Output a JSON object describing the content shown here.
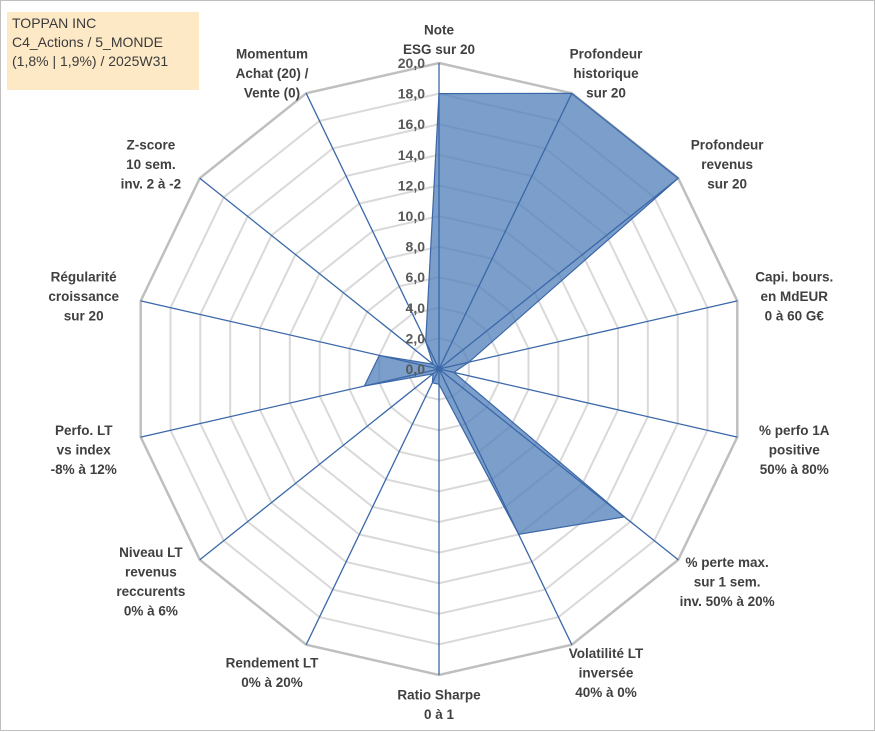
{
  "info": {
    "company": "TOPPAN INC",
    "line2": "C4_Actions / 5_MONDE",
    "line3": "(1,8% | 1,9%) / 2025W31"
  },
  "colors": {
    "fill": "#4f7fb8",
    "fill_opacity": 0.75,
    "stroke": "#3a67a8",
    "spokes": "#3a67a8",
    "grid_outer": "#bfbfbf",
    "grid_inner": "#d9d9d9",
    "info_bg": "#fde9c6"
  },
  "chart_data": {
    "type": "radar",
    "r_min": 0,
    "r_max": 20,
    "tick_step": 2,
    "tick_labels": [
      "0,0",
      "2,0",
      "4,0",
      "6,0",
      "8,0",
      "10,0",
      "12,0",
      "14,0",
      "16,0",
      "18,0",
      "20,0"
    ],
    "axes": [
      {
        "lines": [
          "Note",
          "ESG sur 20"
        ],
        "value": 18
      },
      {
        "lines": [
          "Profondeur",
          "historique",
          "sur 20"
        ],
        "value": 20
      },
      {
        "lines": [
          "Profondeur",
          "revenus",
          "sur 20"
        ],
        "value": 20
      },
      {
        "lines": [
          "Capi. bours.",
          "en MdEUR",
          "0 à 60 G€"
        ],
        "value": 2
      },
      {
        "lines": [
          "% perfo 1A",
          "positive",
          "50% à 80%"
        ],
        "value": 1
      },
      {
        "lines": [
          "% perte max.",
          "sur 1 sem.",
          "inv. 50% à 20%"
        ],
        "value": 15.5
      },
      {
        "lines": [
          "Volatilité LT",
          "inversée",
          "40% à 0%"
        ],
        "value": 12
      },
      {
        "lines": [
          "Ratio Sharpe",
          "0 à 1"
        ],
        "value": 1
      },
      {
        "lines": [
          "Rendement LT",
          "0% à 20%"
        ],
        "value": 1
      },
      {
        "lines": [
          "Niveau LT",
          "revenus",
          "reccurents",
          "0% à 6%"
        ],
        "value": 0.5
      },
      {
        "lines": [
          "Perfo. LT",
          "vs index",
          "-8% à 12%"
        ],
        "value": 5
      },
      {
        "lines": [
          "Régularité",
          "croissance",
          "sur 20"
        ],
        "value": 4
      },
      {
        "lines": [
          "Z-score",
          "10 sem.",
          "inv. 2 à -2"
        ],
        "value": 0.5
      },
      {
        "lines": [
          "Momentum",
          "Achat (20) /",
          "Vente (0)"
        ],
        "value": 2
      }
    ]
  }
}
